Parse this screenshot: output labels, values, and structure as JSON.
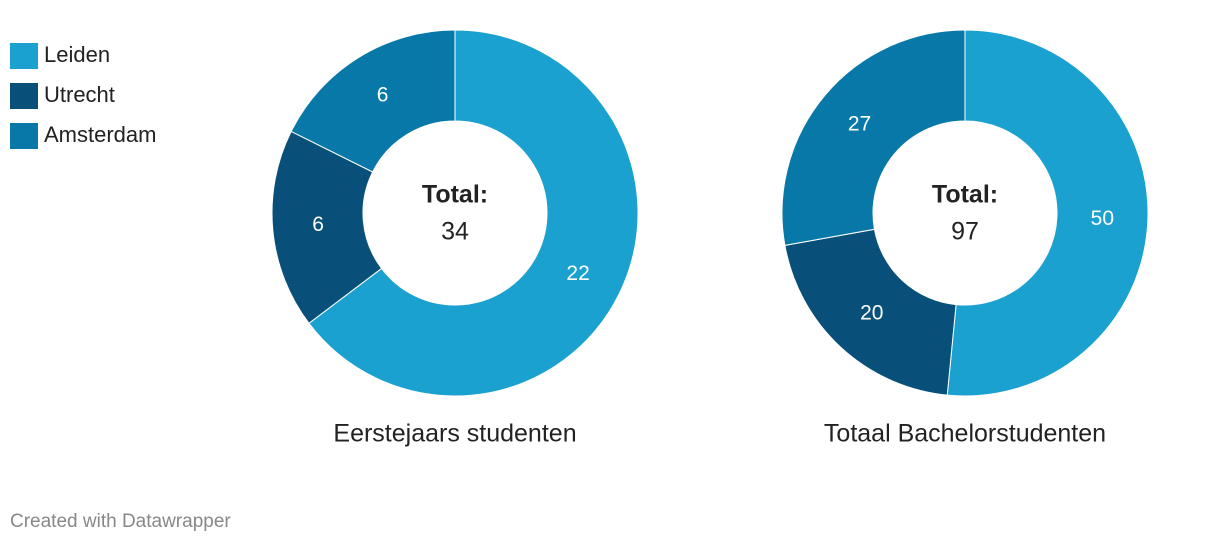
{
  "chart_data": [
    {
      "type": "donut",
      "title": "Eerstejaars studenten",
      "center_label": "Total:",
      "total": 34,
      "categories": [
        "Leiden",
        "Utrecht",
        "Amsterdam"
      ],
      "values": [
        22,
        6,
        6
      ],
      "colors": [
        "#1ba1cf",
        "#08507a",
        "#0878a8"
      ]
    },
    {
      "type": "donut",
      "title": "Totaal Bachelorstudenten",
      "center_label": "Total:",
      "total": 97,
      "categories": [
        "Leiden",
        "Utrecht",
        "Amsterdam"
      ],
      "values": [
        50,
        20,
        27
      ],
      "colors": [
        "#1ba1cf",
        "#08507a",
        "#0878a8"
      ]
    }
  ],
  "footer": "Created with Datawrapper"
}
